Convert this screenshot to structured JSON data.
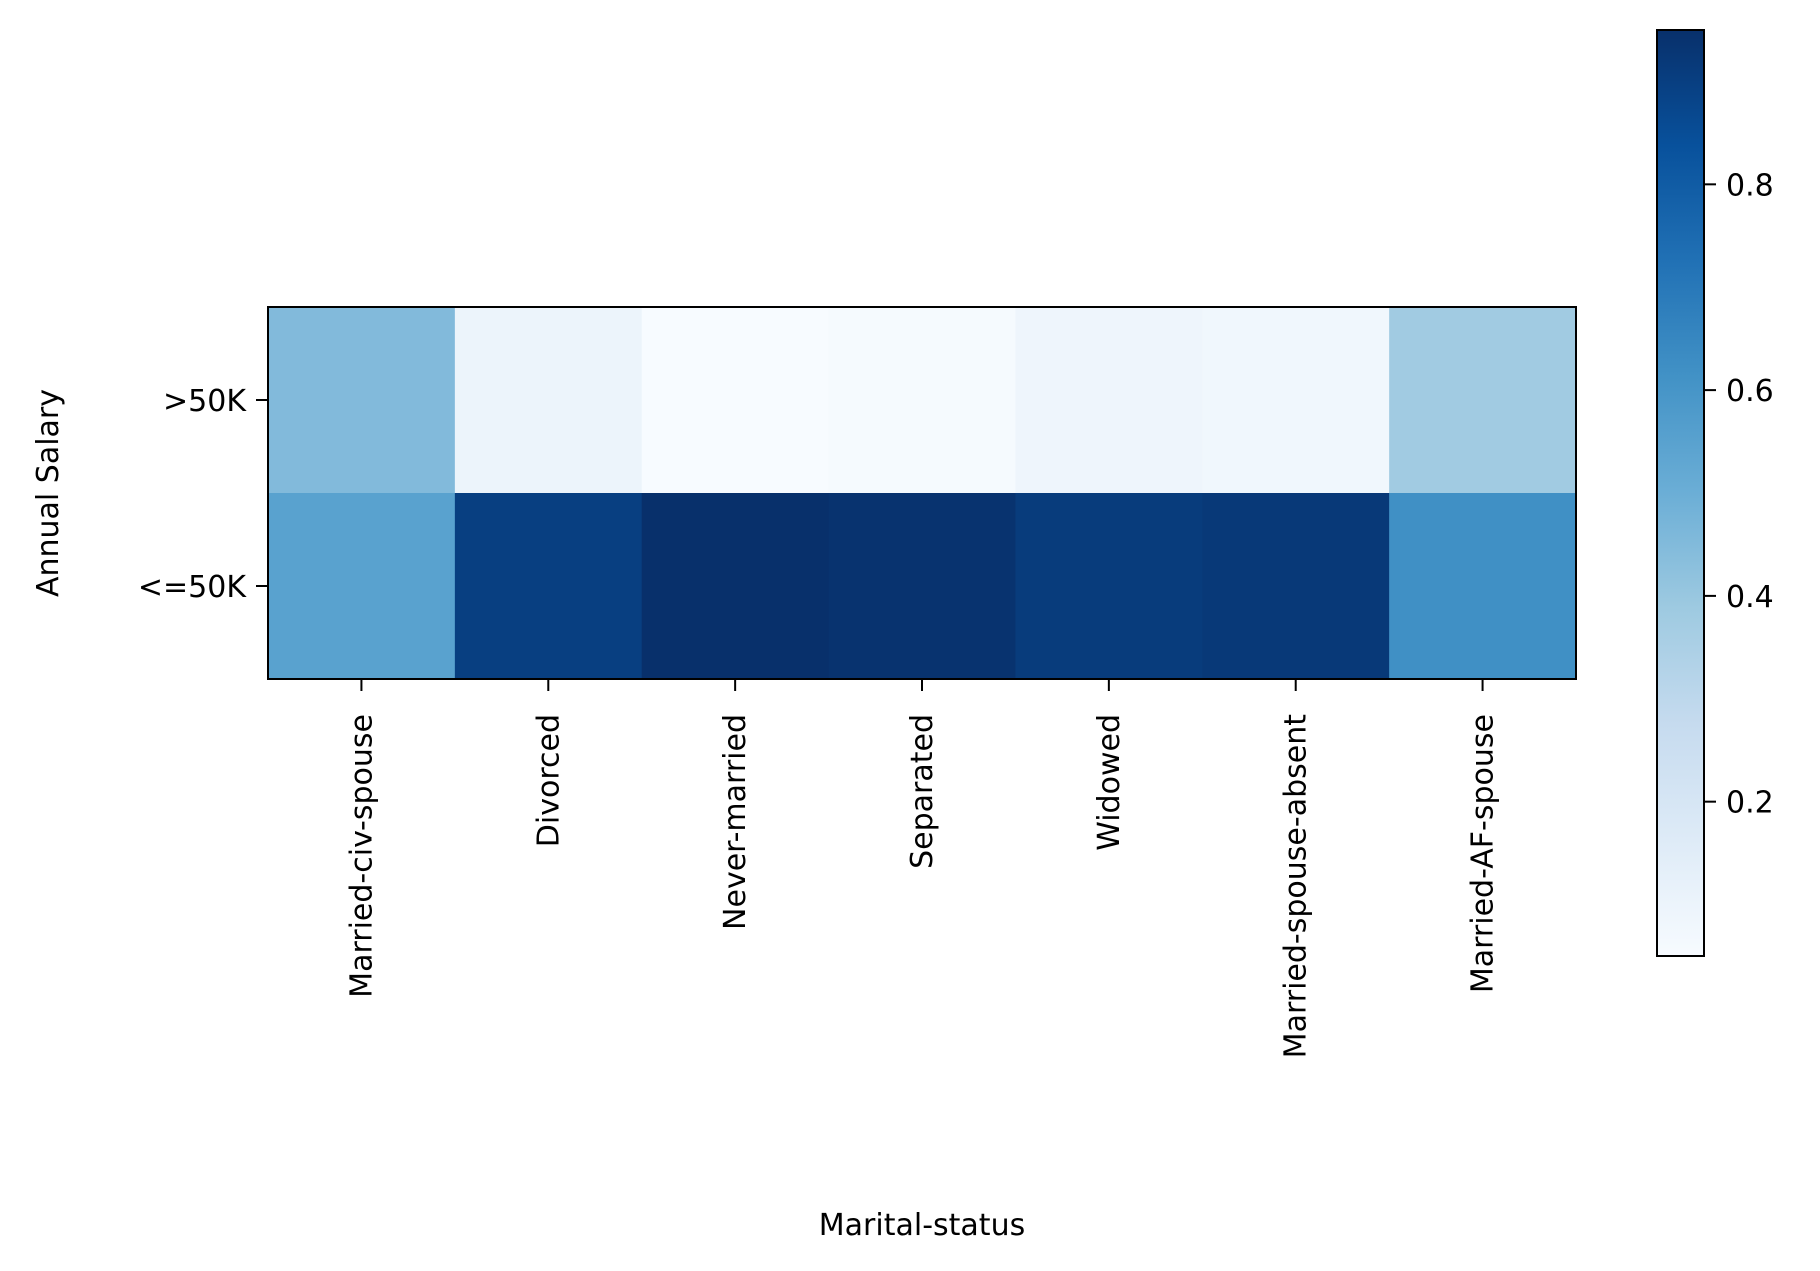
{
  "chart_data": {
    "type": "heatmap",
    "xlabel": "Marital-status",
    "ylabel": "Annual Salary",
    "x_categories": [
      "Married-civ-spouse",
      "Divorced",
      "Never-married",
      "Separated",
      "Widowed",
      "Married-spouse-absent",
      "Married-AF-spouse"
    ],
    "y_categories": [
      ">50K",
      "<=50K"
    ],
    "values": [
      [
        0.45,
        0.1,
        0.05,
        0.06,
        0.09,
        0.08,
        0.38
      ],
      [
        0.55,
        0.9,
        0.95,
        0.94,
        0.91,
        0.92,
        0.62
      ]
    ],
    "colormap": "Blues",
    "colorbar": {
      "min": 0.05,
      "max": 0.95,
      "ticks": [
        0.2,
        0.4,
        0.6,
        0.8
      ],
      "tick_labels": [
        "0.2",
        "0.4",
        "0.6",
        "0.8"
      ]
    },
    "grid": false
  }
}
